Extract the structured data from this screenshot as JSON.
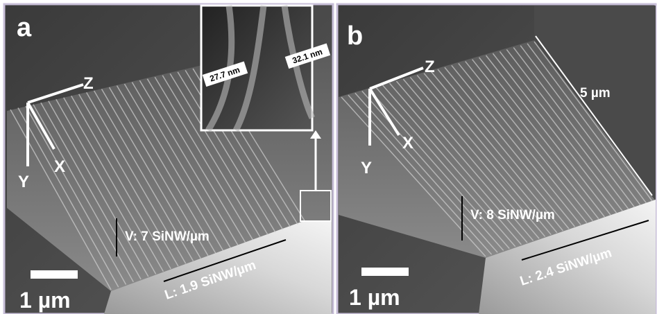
{
  "panels": [
    {
      "label": "a",
      "axes": {
        "z": "Z",
        "x": "X",
        "y": "Y"
      },
      "inset": {
        "left": "27.7 nm",
        "right": "32.1 nm"
      },
      "vertical_density": "V: 7 SiNW/µm",
      "lateral_density": "L: 1.9 SiNW/µm",
      "scale_bar": "1 µm"
    },
    {
      "label": "b",
      "axes": {
        "z": "Z",
        "x": "X",
        "y": "Y"
      },
      "length": "5 µm",
      "vertical_density": "V: 8 SiNW/µm",
      "lateral_density": "L: 2.4 SiNW/µm",
      "scale_bar": "1 µm"
    }
  ]
}
